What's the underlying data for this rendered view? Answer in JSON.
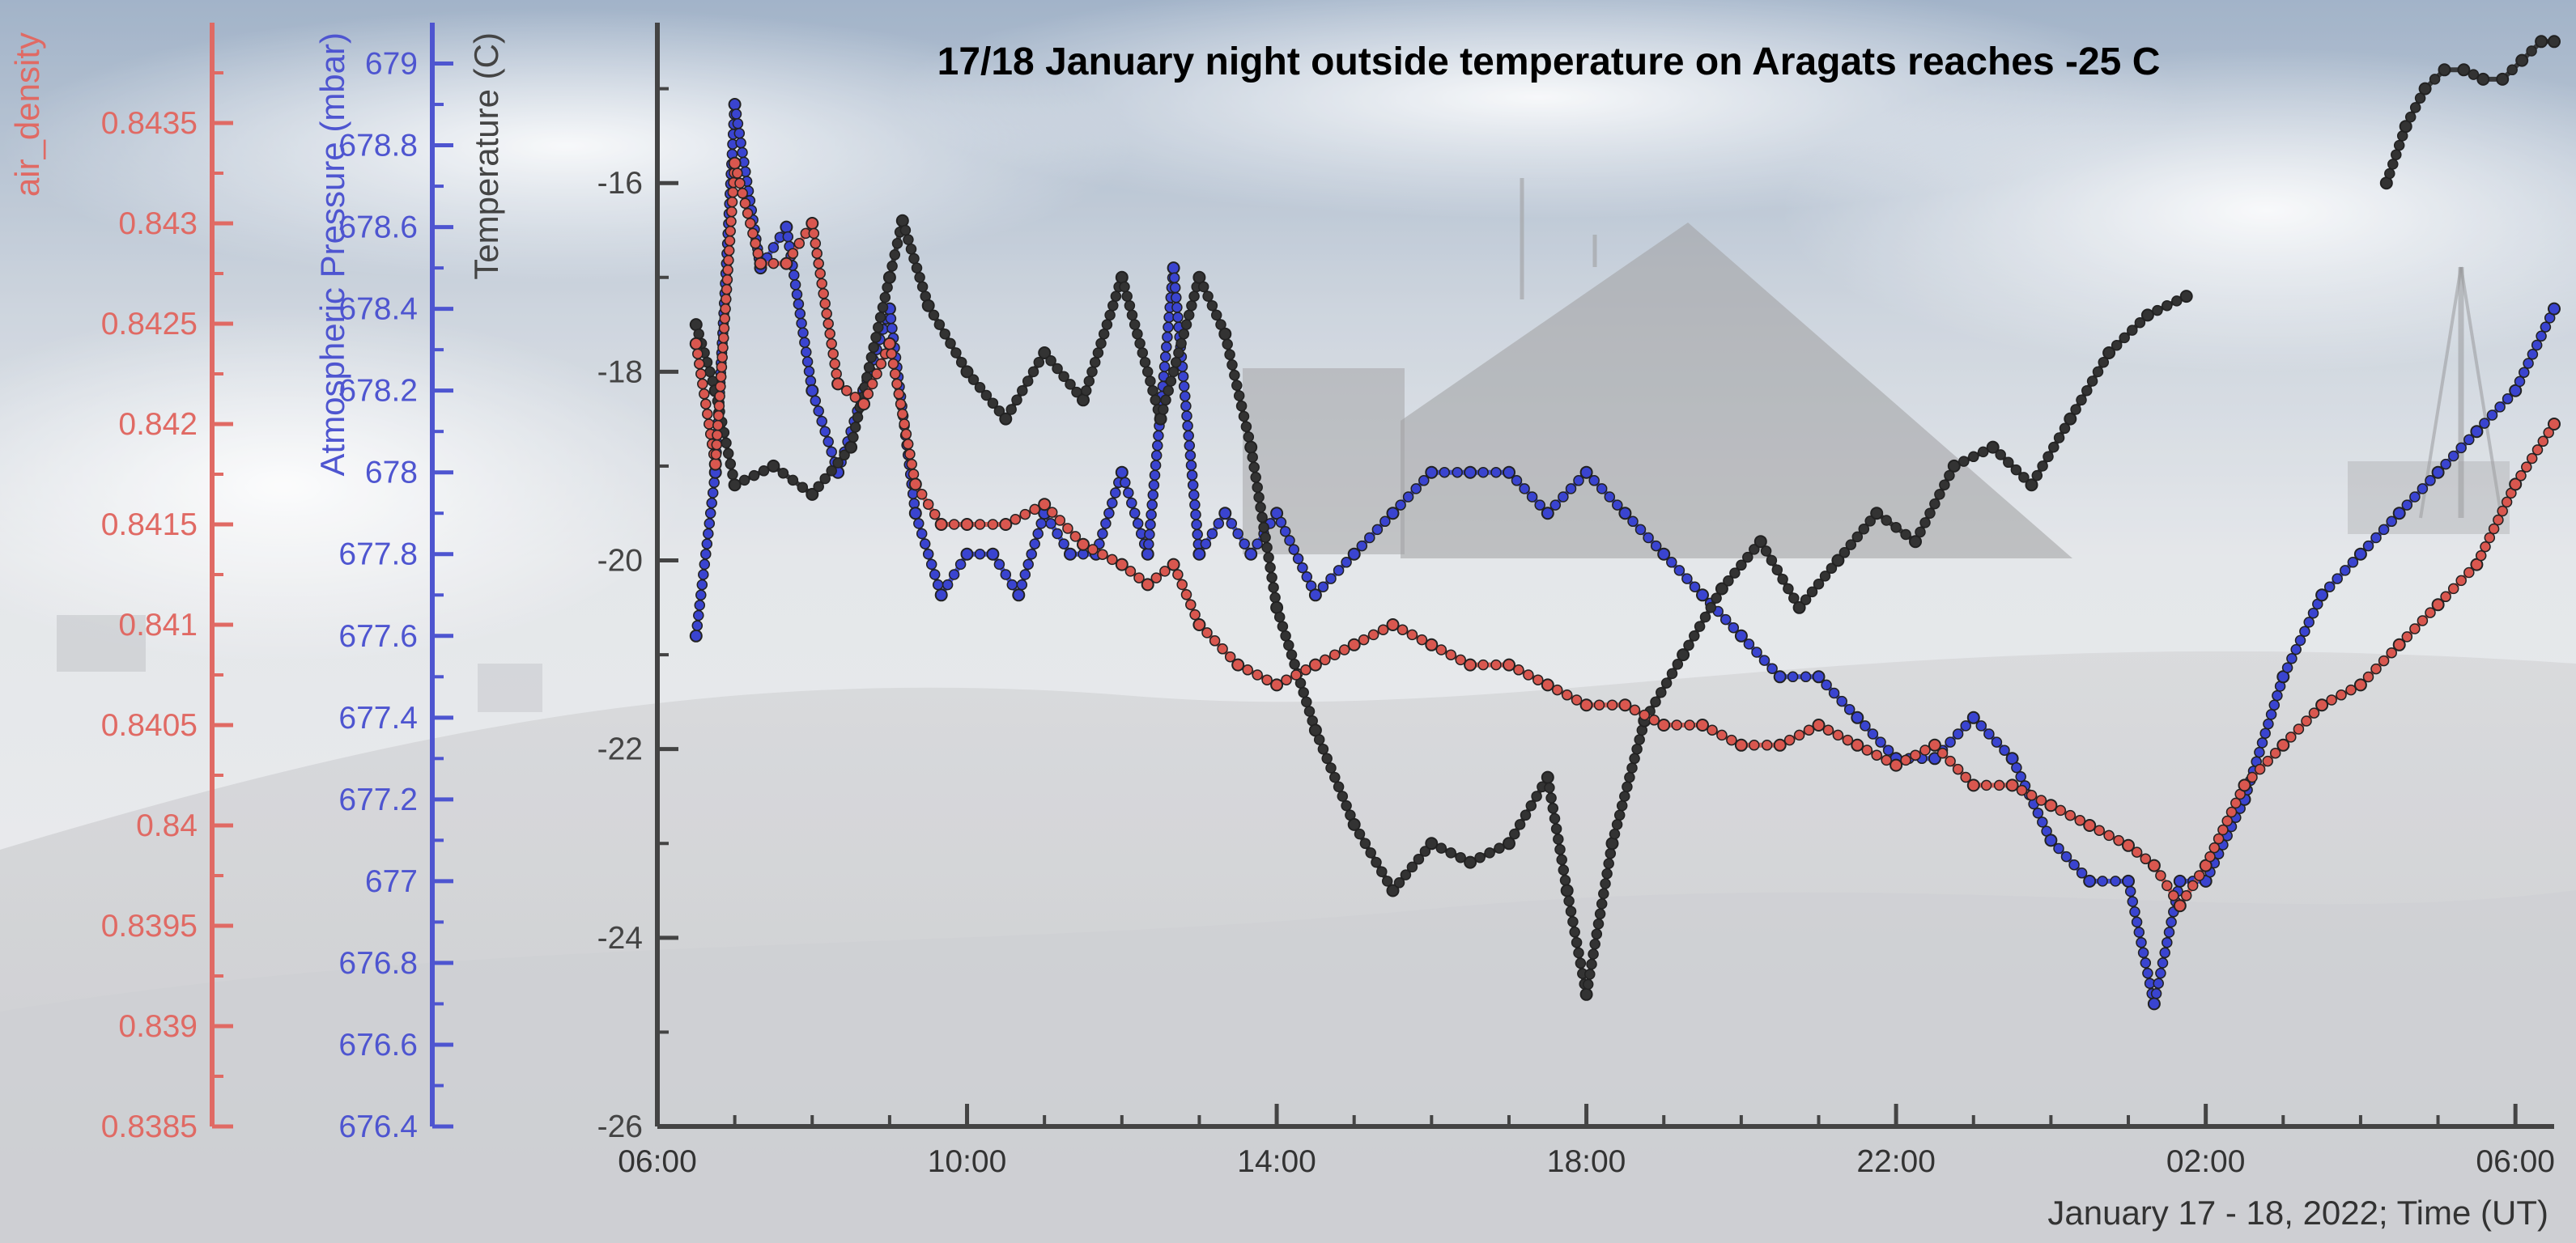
{
  "chart_data": {
    "type": "line",
    "title": "17/18 January night outside temperature on Aragats reaches -25 C",
    "xlabel": "January 17 - 18, 2022; Time (UT)",
    "x_range": [
      "2022-01-17 06:00",
      "2022-01-18 06:30"
    ],
    "x_ticks": [
      "06:00",
      "10:00",
      "14:00",
      "18:00",
      "22:00",
      "02:00",
      "06:00"
    ],
    "x_tick_values": [
      "2022-01-17 06:00",
      "2022-01-17 10:00",
      "2022-01-17 14:00",
      "2022-01-17 18:00",
      "2022-01-17 22:00",
      "2022-01-18 02:00",
      "2022-01-18 06:00"
    ],
    "axes": [
      {
        "id": "temperature",
        "label": "Temperature (C)",
        "color": "#444444",
        "range": [
          -26,
          -14.3
        ],
        "ticks": [
          "-16",
          "-18",
          "-20",
          "-22",
          "-24",
          "-26"
        ],
        "tick_values": [
          -16,
          -18,
          -20,
          -22,
          -24,
          -26
        ]
      },
      {
        "id": "pressure",
        "label": "Atmospheric Pressure (mbar)",
        "color": "#4e55d0",
        "range": [
          676.4,
          679.1
        ],
        "ticks": [
          "679",
          "678.8",
          "678.6",
          "678.4",
          "678.2",
          "678",
          "677.8",
          "677.6",
          "677.4",
          "677.2",
          "677",
          "676.8",
          "676.6",
          "676.4"
        ],
        "tick_values": [
          679,
          678.8,
          678.6,
          678.4,
          678.2,
          678,
          677.8,
          677.6,
          677.4,
          677.2,
          677,
          676.8,
          676.6,
          676.4
        ]
      },
      {
        "id": "density",
        "label": "air_density",
        "color": "#e06a64",
        "range": [
          0.8385,
          0.844
        ],
        "ticks": [
          "0.8435",
          "0.843",
          "0.8425",
          "0.842",
          "0.8415",
          "0.841",
          "0.8405",
          "0.84",
          "0.8395",
          "0.839",
          "0.8385"
        ],
        "tick_values": [
          0.8435,
          0.843,
          0.8425,
          0.842,
          0.8415,
          0.841,
          0.8405,
          0.84,
          0.8395,
          0.839,
          0.8385
        ]
      }
    ],
    "series": [
      {
        "axis": "temperature",
        "color": "#2b2b2b",
        "x": [
          "2022-01-17 06:30",
          "2022-01-17 06:45",
          "2022-01-17 07:00",
          "2022-01-17 07:30",
          "2022-01-17 08:00",
          "2022-01-17 08:30",
          "2022-01-17 09:00",
          "2022-01-17 09:10",
          "2022-01-17 09:30",
          "2022-01-17 10:00",
          "2022-01-17 10:30",
          "2022-01-17 11:00",
          "2022-01-17 11:30",
          "2022-01-17 12:00",
          "2022-01-17 12:30",
          "2022-01-17 13:00",
          "2022-01-17 13:20",
          "2022-01-17 13:40",
          "2022-01-17 14:00",
          "2022-01-17 14:30",
          "2022-01-17 15:00",
          "2022-01-17 15:30",
          "2022-01-17 16:00",
          "2022-01-17 16:30",
          "2022-01-17 17:00",
          "2022-01-17 17:30",
          "2022-01-17 17:45",
          "2022-01-17 18:00",
          "2022-01-17 18:20",
          "2022-01-17 18:45",
          "2022-01-17 19:15",
          "2022-01-17 19:45",
          "2022-01-17 20:15",
          "2022-01-17 20:45",
          "2022-01-17 21:15",
          "2022-01-17 21:45",
          "2022-01-17 22:15",
          "2022-01-17 22:45",
          "2022-01-17 23:15",
          "2022-01-17 23:45",
          "2022-01-18 00:15",
          "2022-01-18 00:45",
          "2022-01-18 01:15",
          "2022-01-18 01:45"
        ],
        "y": [
          -17.5,
          -18.2,
          -19.2,
          -19.0,
          -19.3,
          -18.8,
          -17.0,
          -16.4,
          -17.3,
          -18.0,
          -18.5,
          -17.8,
          -18.3,
          -17.0,
          -18.5,
          -17.0,
          -17.6,
          -18.8,
          -20.5,
          -21.8,
          -22.8,
          -23.5,
          -23.0,
          -23.2,
          -23.0,
          -22.3,
          -23.5,
          -24.6,
          -23.0,
          -21.7,
          -21.0,
          -20.3,
          -19.8,
          -20.5,
          -20.0,
          -19.5,
          -19.8,
          -19.0,
          -18.8,
          -19.2,
          -18.5,
          -17.8,
          -17.4,
          -17.2
        ]
      },
      {
        "axis": "temperature",
        "color": "#2b2b2b",
        "x": [
          "2022-01-18 04:20",
          "2022-01-18 04:35",
          "2022-01-18 04:50",
          "2022-01-18 05:05",
          "2022-01-18 05:20",
          "2022-01-18 05:35",
          "2022-01-18 05:50",
          "2022-01-18 06:05",
          "2022-01-18 06:20",
          "2022-01-18 06:30"
        ],
        "y": [
          -16.0,
          -15.4,
          -15.0,
          -14.8,
          -14.8,
          -14.9,
          -14.9,
          -14.7,
          -14.5,
          -14.5
        ]
      },
      {
        "axis": "pressure",
        "color": "#3a44d0",
        "x": [
          "2022-01-17 06:30",
          "2022-01-17 06:45",
          "2022-01-17 07:00",
          "2022-01-17 07:20",
          "2022-01-17 07:40",
          "2022-01-17 08:00",
          "2022-01-17 08:20",
          "2022-01-17 08:40",
          "2022-01-17 09:00",
          "2022-01-17 09:20",
          "2022-01-17 09:40",
          "2022-01-17 10:00",
          "2022-01-17 10:20",
          "2022-01-17 10:40",
          "2022-01-17 11:00",
          "2022-01-17 11:20",
          "2022-01-17 11:40",
          "2022-01-17 12:00",
          "2022-01-17 12:20",
          "2022-01-17 12:40",
          "2022-01-17 13:00",
          "2022-01-17 13:20",
          "2022-01-17 13:40",
          "2022-01-17 14:00",
          "2022-01-17 14:30",
          "2022-01-17 15:00",
          "2022-01-17 15:30",
          "2022-01-17 16:00",
          "2022-01-17 16:30",
          "2022-01-17 17:00",
          "2022-01-17 17:30",
          "2022-01-17 18:00",
          "2022-01-17 18:30",
          "2022-01-17 19:00",
          "2022-01-17 19:30",
          "2022-01-17 20:00",
          "2022-01-17 20:30",
          "2022-01-17 21:00",
          "2022-01-17 21:30",
          "2022-01-17 22:00",
          "2022-01-17 22:30",
          "2022-01-17 23:00",
          "2022-01-17 23:30",
          "2022-01-18 00:00",
          "2022-01-18 00:30",
          "2022-01-18 01:00",
          "2022-01-18 01:20",
          "2022-01-18 01:40",
          "2022-01-18 02:00",
          "2022-01-18 02:30",
          "2022-01-18 03:00",
          "2022-01-18 03:30",
          "2022-01-18 04:00",
          "2022-01-18 04:30",
          "2022-01-18 05:00",
          "2022-01-18 05:30",
          "2022-01-18 06:00",
          "2022-01-18 06:30"
        ],
        "y": [
          677.6,
          678.0,
          678.9,
          678.5,
          678.6,
          678.2,
          678.0,
          678.2,
          678.4,
          677.9,
          677.7,
          677.8,
          677.8,
          677.7,
          677.9,
          677.8,
          677.8,
          678.0,
          677.8,
          678.5,
          677.8,
          677.9,
          677.8,
          677.9,
          677.7,
          677.8,
          677.9,
          678.0,
          678.0,
          678.0,
          677.9,
          678.0,
          677.9,
          677.8,
          677.7,
          677.6,
          677.5,
          677.5,
          677.4,
          677.3,
          677.3,
          677.4,
          677.3,
          677.1,
          677.0,
          677.0,
          676.7,
          677.0,
          677.0,
          677.2,
          677.5,
          677.7,
          677.8,
          677.9,
          678.0,
          678.1,
          678.2,
          678.4
        ]
      },
      {
        "axis": "density",
        "color": "#d9574f",
        "x": [
          "2022-01-17 06:30",
          "2022-01-17 06:45",
          "2022-01-17 07:00",
          "2022-01-17 07:20",
          "2022-01-17 07:40",
          "2022-01-17 08:00",
          "2022-01-17 08:20",
          "2022-01-17 08:40",
          "2022-01-17 09:00",
          "2022-01-17 09:20",
          "2022-01-17 09:40",
          "2022-01-17 10:00",
          "2022-01-17 10:30",
          "2022-01-17 11:00",
          "2022-01-17 11:30",
          "2022-01-17 12:00",
          "2022-01-17 12:20",
          "2022-01-17 12:40",
          "2022-01-17 13:00",
          "2022-01-17 13:30",
          "2022-01-17 14:00",
          "2022-01-17 14:30",
          "2022-01-17 15:00",
          "2022-01-17 15:30",
          "2022-01-17 16:00",
          "2022-01-17 16:30",
          "2022-01-17 17:00",
          "2022-01-17 17:30",
          "2022-01-17 18:00",
          "2022-01-17 18:30",
          "2022-01-17 19:00",
          "2022-01-17 19:30",
          "2022-01-17 20:00",
          "2022-01-17 20:30",
          "2022-01-17 21:00",
          "2022-01-17 21:30",
          "2022-01-17 22:00",
          "2022-01-17 22:30",
          "2022-01-17 23:00",
          "2022-01-17 23:30",
          "2022-01-18 00:00",
          "2022-01-18 00:30",
          "2022-01-18 01:00",
          "2022-01-18 01:20",
          "2022-01-18 01:40",
          "2022-01-18 02:00",
          "2022-01-18 02:30",
          "2022-01-18 03:00",
          "2022-01-18 03:30",
          "2022-01-18 04:00",
          "2022-01-18 04:30",
          "2022-01-18 05:00",
          "2022-01-18 05:30",
          "2022-01-18 06:00",
          "2022-01-18 06:30"
        ],
        "y": [
          0.8424,
          0.8418,
          0.8433,
          0.8428,
          0.8428,
          0.843,
          0.8422,
          0.8421,
          0.8424,
          0.8417,
          0.8415,
          0.8415,
          0.8415,
          0.8416,
          0.8414,
          0.8413,
          0.8412,
          0.8413,
          0.841,
          0.8408,
          0.8407,
          0.8408,
          0.8409,
          0.841,
          0.8409,
          0.8408,
          0.8408,
          0.8407,
          0.8406,
          0.8406,
          0.8405,
          0.8405,
          0.8404,
          0.8404,
          0.8405,
          0.8404,
          0.8403,
          0.8404,
          0.8402,
          0.8402,
          0.8401,
          0.84,
          0.8399,
          0.8398,
          0.8396,
          0.8398,
          0.8402,
          0.8404,
          0.8406,
          0.8407,
          0.8409,
          0.8411,
          0.8413,
          0.8417,
          0.842
        ]
      }
    ]
  }
}
